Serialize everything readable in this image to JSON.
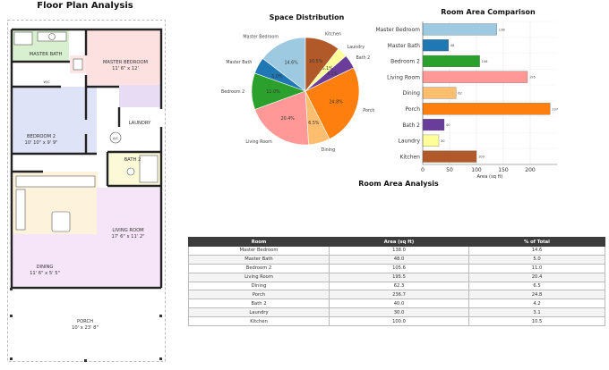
{
  "floorplan": {
    "title": "Floor Plan Analysis",
    "rooms": [
      {
        "name": "MASTER BATH",
        "dims": ""
      },
      {
        "name": "MASTER BEDROOM",
        "dims": "11' 6\" x 12'"
      },
      {
        "name": "W/C",
        "dims": ""
      },
      {
        "name": "LAUNDRY",
        "dims": ""
      },
      {
        "name": "BEDROOM 2",
        "dims": "10' 10\" x 9' 9\""
      },
      {
        "name": "A/C",
        "dims": ""
      },
      {
        "name": "BATH 2",
        "dims": ""
      },
      {
        "name": "LIVING ROOM",
        "dims": "17' 6\" x 11' 2\""
      },
      {
        "name": "DINING",
        "dims": "11' 6\" x 5' 5\""
      },
      {
        "name": "PORCH",
        "dims": "10' x 23' 8\""
      }
    ]
  },
  "chart_data": [
    {
      "type": "pie",
      "title": "Space Distribution",
      "categories": [
        "Master Bedroom",
        "Master Bath",
        "Bedroom 2",
        "Living Room",
        "Dining",
        "Porch",
        "Bath 2",
        "Laundry",
        "Kitchen"
      ],
      "values": [
        14.6,
        5.0,
        11.0,
        20.4,
        6.5,
        24.8,
        4.2,
        3.1,
        10.5
      ],
      "labels": [
        "14.6%",
        "5.0%",
        "11.0%",
        "20.4%",
        "6.5%",
        "24.8%",
        "4.2%",
        "3.1%",
        "10.5%"
      ],
      "colors": [
        "#9ecae1",
        "#1f77b4",
        "#2ca02c",
        "#ff9896",
        "#fdbf6f",
        "#ff7f0e",
        "#6a3d9a",
        "#ffff99",
        "#b15928"
      ]
    },
    {
      "type": "bar",
      "orientation": "horizontal",
      "title": "Room Area Comparison",
      "categories": [
        "Master Bedroom",
        "Master Bath",
        "Bedroom 2",
        "Living Room",
        "Dining",
        "Porch",
        "Bath 2",
        "Laundry",
        "Kitchen"
      ],
      "values": [
        138,
        48,
        106,
        195,
        62,
        237,
        40,
        30,
        100
      ],
      "value_labels": [
        "138",
        "48",
        "106",
        "195",
        "62",
        "237",
        "40",
        "30",
        "100"
      ],
      "colors": [
        "#9ecae1",
        "#1f77b4",
        "#2ca02c",
        "#ff9896",
        "#fdbf6f",
        "#ff7f0e",
        "#6a3d9a",
        "#ffff99",
        "#b15928"
      ],
      "xlabel": "Area (sq ft)",
      "xticks": [
        0,
        50,
        100,
        150,
        200
      ],
      "xlim": [
        0,
        250
      ],
      "grid": true
    },
    {
      "type": "table",
      "title": "Room Area Analysis",
      "columns": [
        "Room",
        "Area (sq ft)",
        "% of Total"
      ],
      "rows": [
        [
          "Master Bedroom",
          "138.0",
          "14.6"
        ],
        [
          "Master Bath",
          "48.0",
          "5.0"
        ],
        [
          "Bedroom 2",
          "105.6",
          "11.0"
        ],
        [
          "Living Room",
          "195.5",
          "20.4"
        ],
        [
          "Dining",
          "62.3",
          "6.5"
        ],
        [
          "Porch",
          "236.7",
          "24.8"
        ],
        [
          "Bath 2",
          "40.0",
          "4.2"
        ],
        [
          "Laundry",
          "30.0",
          "3.1"
        ],
        [
          "Kitchen",
          "100.0",
          "10.5"
        ]
      ]
    }
  ]
}
